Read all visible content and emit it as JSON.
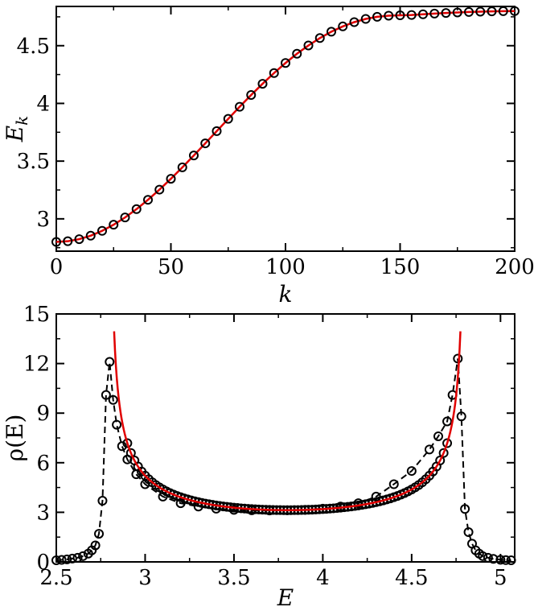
{
  "chart_data": [
    {
      "type": "line",
      "panel": "top",
      "xlabel": "k",
      "ylabel": "E",
      "ylabel_subscript": "k",
      "xlim": [
        0,
        200
      ],
      "ylim": [
        2.72,
        4.84
      ],
      "x_ticks": [
        0,
        50,
        100,
        150,
        200
      ],
      "y_ticks": [
        3,
        3.5,
        4,
        4.5
      ],
      "x_tick_labels": [
        "0",
        "50",
        "100",
        "150",
        "200"
      ],
      "y_tick_labels": [
        "3",
        "3.5",
        "4",
        "4.5"
      ],
      "grid": false,
      "series": [
        {
          "style": "markers",
          "marker": "open-circle",
          "color": "#000000",
          "x": [
            0,
            5,
            10,
            15,
            20,
            25,
            30,
            35,
            40,
            45,
            50,
            55,
            60,
            65,
            70,
            75,
            80,
            85,
            90,
            95,
            100,
            105,
            110,
            115,
            120,
            125,
            130,
            135,
            140,
            145,
            150,
            155,
            160,
            165,
            170,
            175,
            180,
            185,
            190,
            195,
            200
          ],
          "y": [
            2.8,
            2.806,
            2.824,
            2.854,
            2.896,
            2.949,
            3.012,
            3.084,
            3.165,
            3.253,
            3.347,
            3.446,
            3.549,
            3.654,
            3.76,
            3.866,
            3.971,
            4.073,
            4.17,
            4.263,
            4.35,
            4.43,
            4.502,
            4.566,
            4.621,
            4.667,
            4.704,
            4.732,
            4.75,
            4.76,
            4.763,
            4.766,
            4.772,
            4.778,
            4.783,
            4.788,
            4.792,
            4.795,
            4.797,
            4.799,
            4.8
          ]
        },
        {
          "style": "line",
          "color": "#e00000",
          "x": [
            0,
            10,
            20,
            30,
            40,
            50,
            60,
            70,
            80,
            90,
            100,
            110,
            120,
            130,
            140,
            150,
            160,
            170,
            180,
            190,
            200
          ],
          "y": [
            2.8,
            2.824,
            2.896,
            3.012,
            3.165,
            3.347,
            3.549,
            3.76,
            3.971,
            4.17,
            4.35,
            4.502,
            4.621,
            4.704,
            4.75,
            4.763,
            4.772,
            4.783,
            4.792,
            4.797,
            4.8
          ]
        }
      ]
    },
    {
      "type": "line",
      "panel": "bottom",
      "xlabel": "E",
      "ylabel": "ρ(E)",
      "xlim": [
        2.5,
        5.08
      ],
      "ylim": [
        0,
        15
      ],
      "x_ticks": [
        2.5,
        3,
        3.5,
        4,
        4.5,
        5
      ],
      "y_ticks": [
        0,
        3,
        6,
        9,
        12,
        15
      ],
      "x_tick_labels": [
        "2.5",
        "3",
        "3.5",
        "4",
        "4.5",
        "5"
      ],
      "y_tick_labels": [
        "0",
        "3",
        "6",
        "9",
        "12",
        "15"
      ],
      "grid": false,
      "series": [
        {
          "style": "dashed-line-with-markers",
          "marker": "open-circle",
          "color": "#000000",
          "x": [
            2.5,
            2.53,
            2.56,
            2.59,
            2.62,
            2.65,
            2.68,
            2.7,
            2.72,
            2.74,
            2.76,
            2.78,
            2.8,
            2.82,
            2.84,
            2.87,
            2.9,
            2.95,
            3.0,
            3.1,
            3.2,
            3.3,
            3.4,
            3.5,
            3.6,
            3.7,
            3.8,
            3.9,
            4.0,
            4.1,
            4.2,
            4.3,
            4.4,
            4.5,
            4.6,
            4.65,
            4.7,
            4.73,
            4.76,
            4.78,
            4.8,
            4.82,
            4.84,
            4.86,
            4.88,
            4.9,
            4.93,
            4.96,
            5.0,
            5.03,
            5.06
          ],
          "y": [
            0.1,
            0.12,
            0.15,
            0.2,
            0.25,
            0.35,
            0.5,
            0.7,
            1.0,
            1.7,
            3.7,
            10.1,
            12.1,
            9.8,
            8.3,
            7.0,
            6.2,
            5.3,
            4.7,
            3.95,
            3.55,
            3.35,
            3.22,
            3.15,
            3.12,
            3.11,
            3.12,
            3.15,
            3.22,
            3.35,
            3.55,
            3.95,
            4.7,
            5.5,
            6.8,
            7.6,
            8.5,
            10.1,
            12.3,
            8.8,
            3.2,
            1.8,
            1.1,
            0.7,
            0.5,
            0.35,
            0.25,
            0.18,
            0.13,
            0.11,
            0.1
          ]
        },
        {
          "style": "line",
          "color": "#e00000",
          "description": "analytic density of states",
          "x_range": [
            2.8,
            4.8
          ]
        }
      ]
    }
  ]
}
